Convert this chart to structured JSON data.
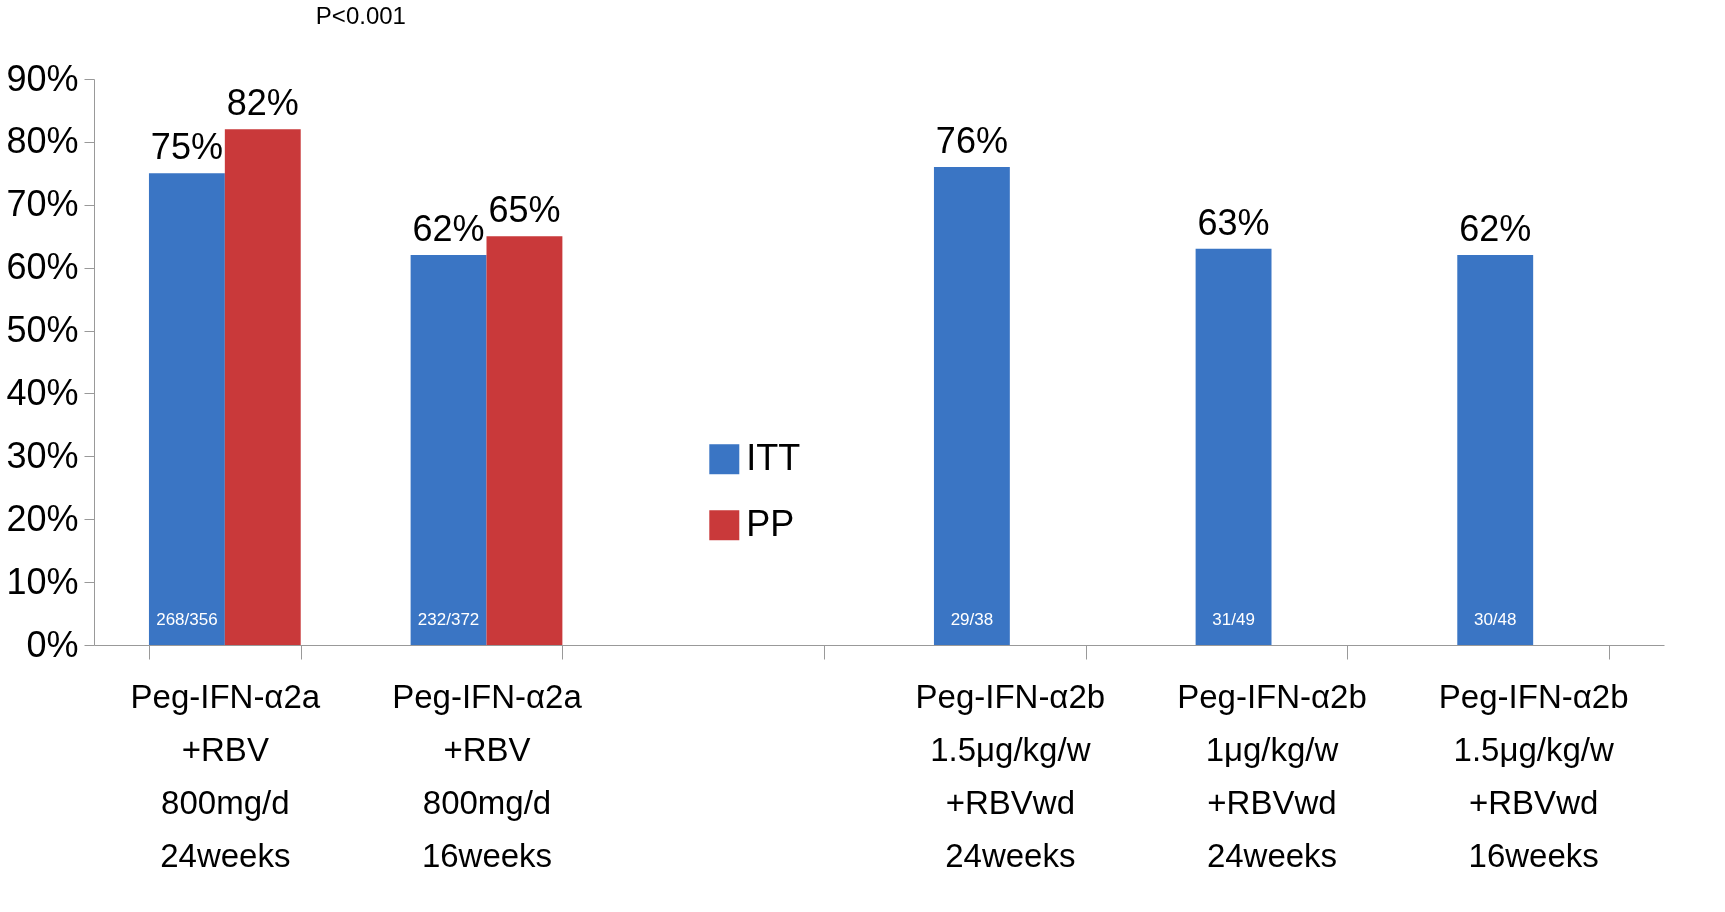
{
  "chart_data": {
    "type": "bar",
    "categories": [
      "Peg-IFN-α2a\n+RBV\n800mg/d\n24weeks",
      "Peg-IFN-α2a\n+RBV\n800mg/d\n16weeks",
      null,
      "Peg-IFN-α2b\n1.5μg/kg/w\n+RBVwd\n24weeks",
      "Peg-IFN-α2b\n1μg/kg/w\n+RBVwd\n24weeks",
      "Peg-IFN-α2b\n1.5μg/kg/w\n+RBVwd\n16weeks"
    ],
    "series": [
      {
        "name": "ITT",
        "color": "#3a75c4",
        "values": [
          75,
          62,
          null,
          76,
          63,
          62
        ],
        "value_labels": [
          "75%",
          "62%",
          null,
          "76%",
          "63%",
          "62%"
        ]
      },
      {
        "name": "PP",
        "color": "#c9393a",
        "values": [
          82,
          65,
          null,
          null,
          null,
          null
        ],
        "value_labels": [
          "82%",
          "65%",
          null,
          null,
          null,
          null
        ]
      }
    ],
    "ylim": [
      0,
      90
    ],
    "yticks": [
      {
        "value": 0,
        "label": "0%"
      },
      {
        "value": 10,
        "label": "10%"
      },
      {
        "value": 20,
        "label": "20%"
      },
      {
        "value": 30,
        "label": "30%"
      },
      {
        "value": 40,
        "label": "40%"
      },
      {
        "value": 50,
        "label": "50%"
      },
      {
        "value": 60,
        "label": "60%"
      },
      {
        "value": 70,
        "label": "70%"
      },
      {
        "value": 80,
        "label": "80%"
      },
      {
        "value": 90,
        "label": "90%"
      }
    ],
    "annotations": [
      "P<0.001",
      {
        "text": "268/356",
        "x": "Peg-IFN-α2a\n+RBV\n800mg/d\n24weeks",
        "y": 4
      },
      {
        "text": "232/372",
        "x": "Peg-IFN-α2a\n+RBV\n800mg/d\n16weeks",
        "y": 4
      },
      {
        "text": "29/38",
        "x": "Peg-IFN-α2b\n1.5μg/kg/w\n+RBVwd\n24weeks",
        "y": 4
      },
      {
        "text": "31/49",
        "x": "Peg-IFN-α2b\n1μg/kg/w\n+RBVwd\n24weeks",
        "y": 4
      },
      {
        "text": "30/48",
        "x": "Peg-IFN-α2b\n1.5μg/kg/w\n+RBVwd\n16weeks",
        "y": 4
      }
    ],
    "legend": "center",
    "grid": false
  }
}
